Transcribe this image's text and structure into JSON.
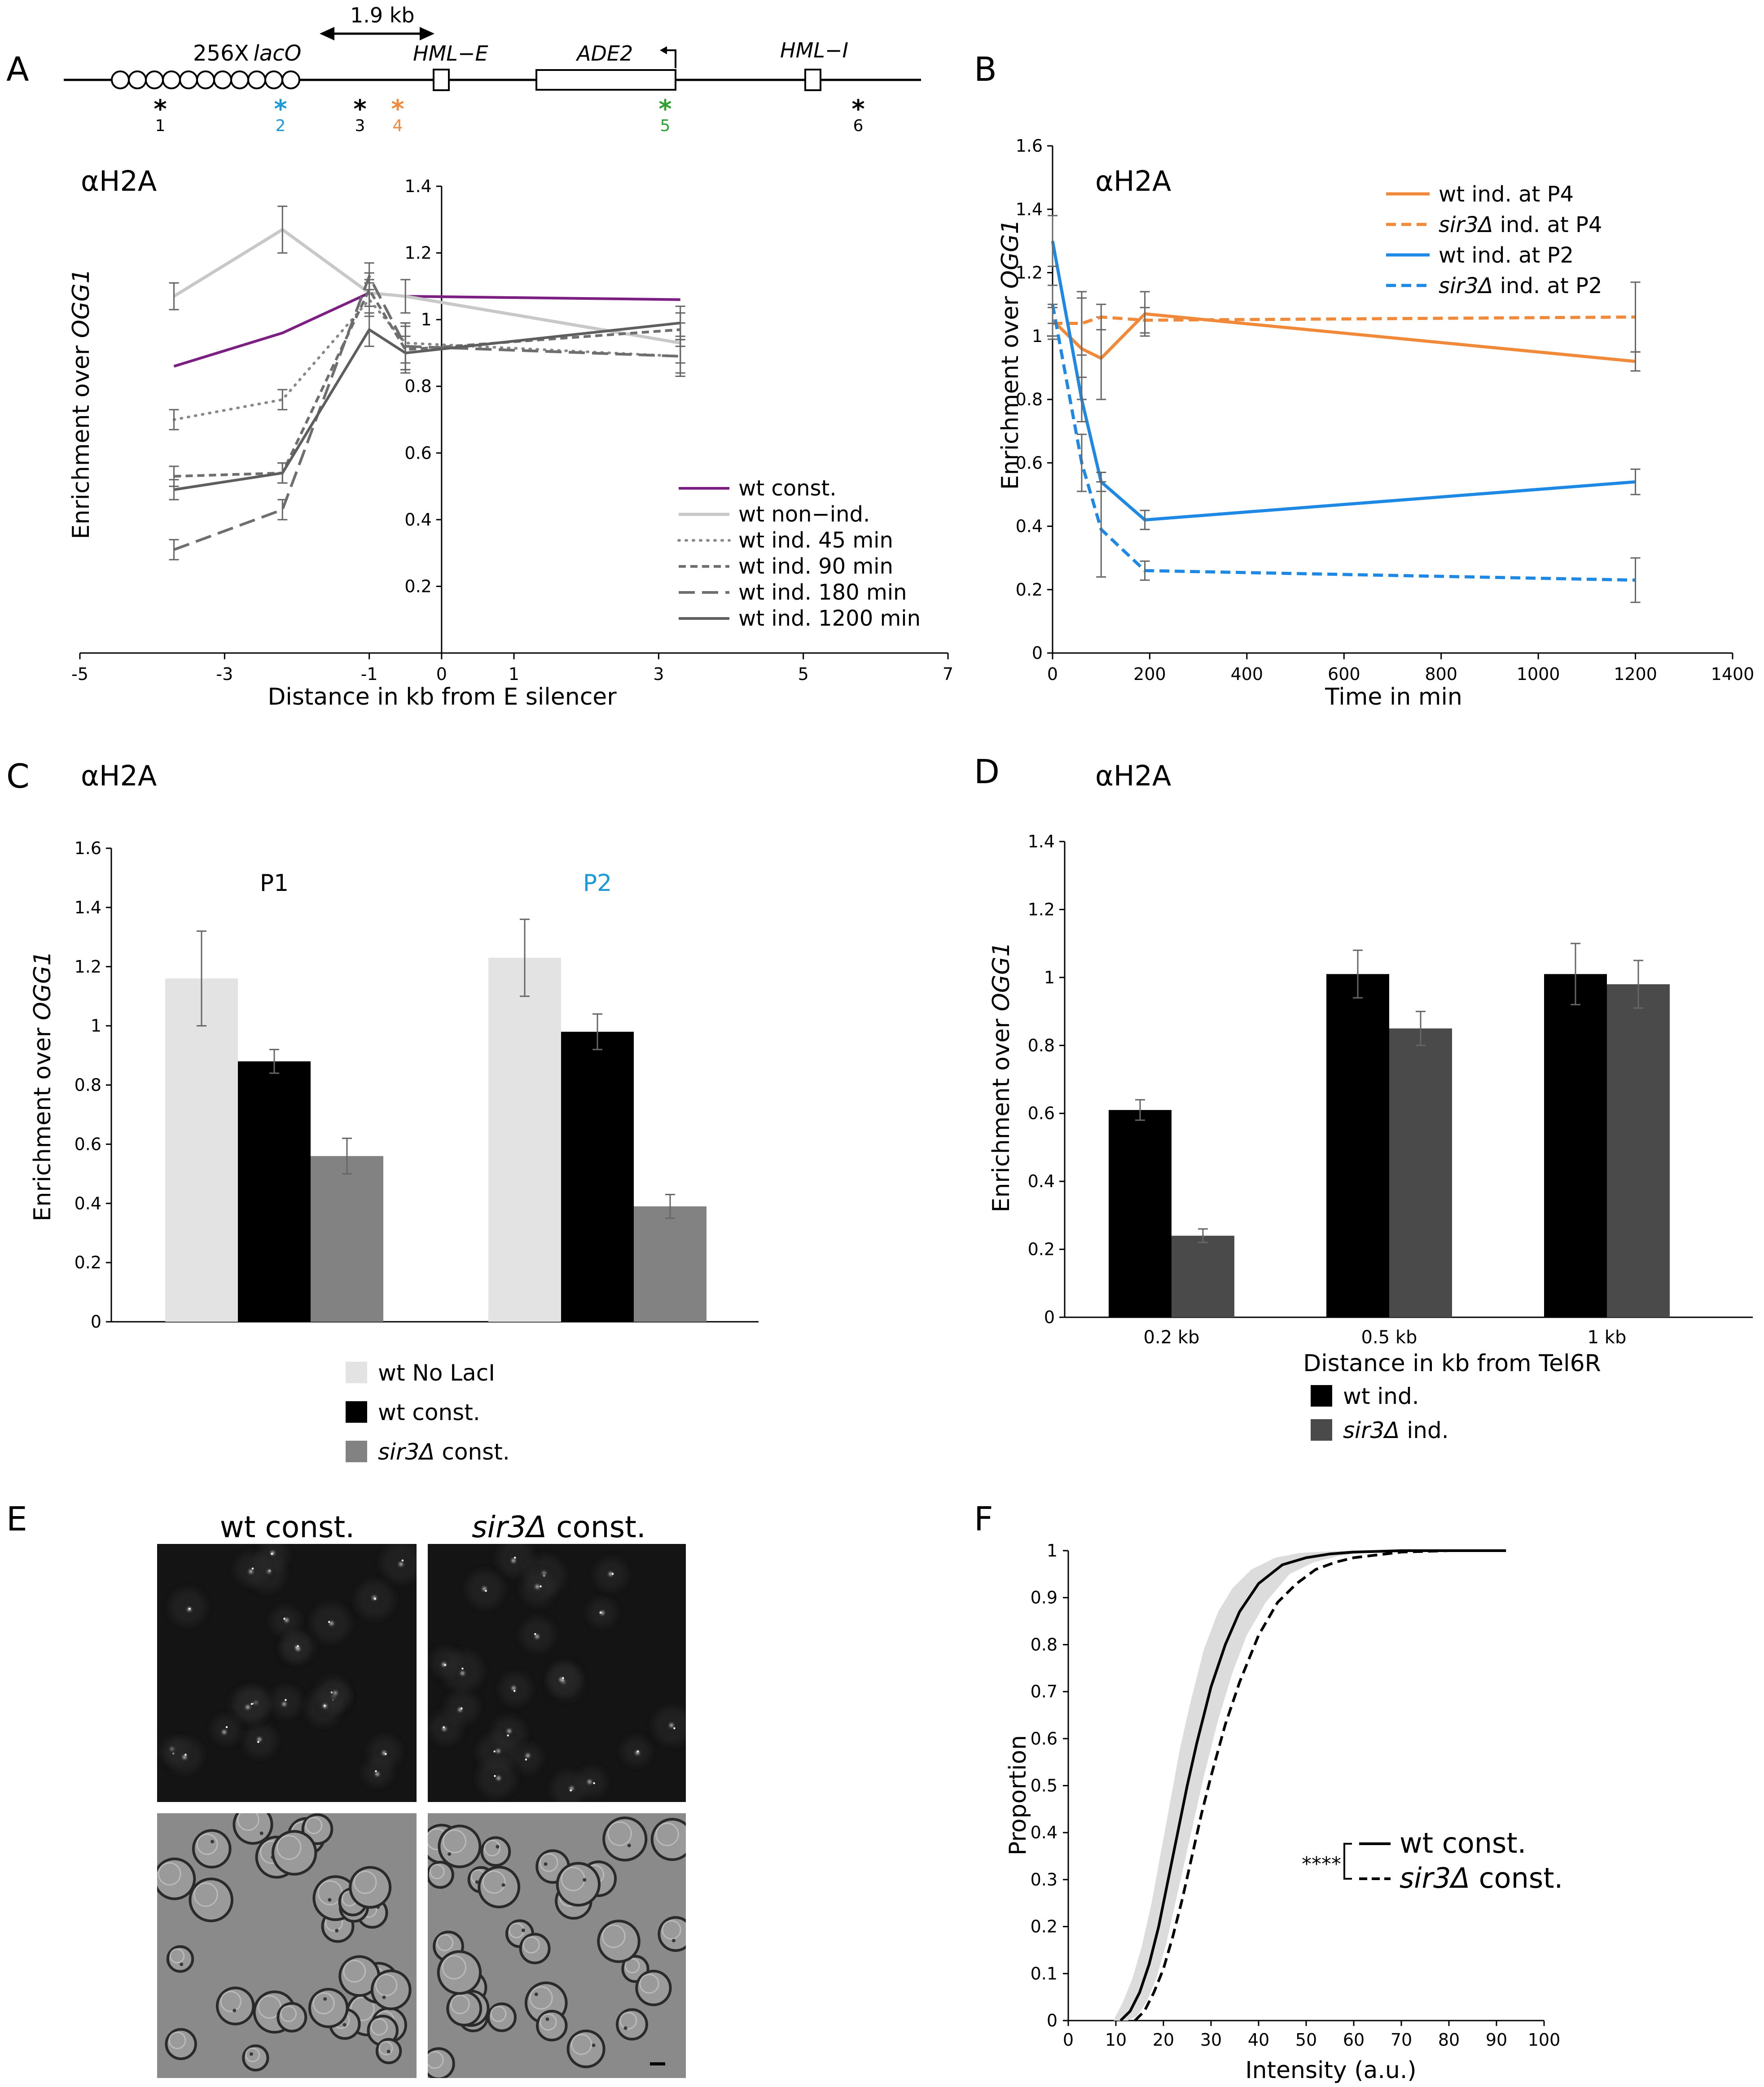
{
  "panel_letters": [
    "A",
    "B",
    "C",
    "D",
    "E",
    "F"
  ],
  "schematic": {
    "lacO_label": "256X",
    "lacO_italic": "lacO",
    "distance_label": "1.9 kb",
    "hmle_label": "HML−E",
    "ade2_label": "ADE2",
    "hmli_label": "HML−I",
    "primers": [
      {
        "num": "1",
        "color": "#000000"
      },
      {
        "num": "2",
        "color": "#1a9ad8"
      },
      {
        "num": "3",
        "color": "#000000"
      },
      {
        "num": "4",
        "color": "#f08a3a"
      },
      {
        "num": "5",
        "color": "#2ca02c"
      },
      {
        "num": "6",
        "color": "#000000"
      }
    ]
  },
  "chart_data": [
    {
      "id": "A",
      "type": "line",
      "title": "αH2A",
      "xlabel": "Distance in kb from E silencer",
      "ylabel_prefix": "Enrichment over ",
      "ylabel_italic": "OGG1",
      "xlim": [
        -5,
        7
      ],
      "ylim": [
        0,
        1.4
      ],
      "xticks": [
        -5,
        -3,
        -1,
        1,
        3,
        5,
        7
      ],
      "xticks_minor": [
        0
      ],
      "yticks": [
        0.2,
        0.4,
        0.6,
        0.8,
        1.0,
        1.2,
        1.4
      ],
      "ytick_labels": [
        "0.2",
        "0.4",
        "0.6",
        "0.8",
        "1",
        "1.2",
        "1.4"
      ],
      "xtick_labels": [
        "-5",
        "-3",
        "-1",
        "0",
        "1",
        "3",
        "5",
        "7"
      ],
      "x": [
        -3.7,
        -2.2,
        -1.0,
        -0.5,
        3.3
      ],
      "series": [
        {
          "name": "wt const.",
          "color": "#7b1f82",
          "dash": "solid",
          "width": 6,
          "values": [
            0.86,
            0.96,
            1.08,
            1.07,
            1.06
          ],
          "err": [
            0,
            0.0,
            0,
            0,
            0.0
          ]
        },
        {
          "name": "wt non−ind.",
          "color": "#c8c8c8",
          "dash": "solid",
          "width": 7,
          "values": [
            1.07,
            1.27,
            1.08,
            1.07,
            0.93
          ],
          "err": [
            0.04,
            0.07,
            0.04,
            0.05,
            0.06
          ]
        },
        {
          "name": "wt ind. 45 min",
          "color": "#888888",
          "dash": "dot",
          "width": 6,
          "values": [
            0.7,
            0.76,
            1.06,
            0.93,
            0.89
          ],
          "err": [
            0.03,
            0.03,
            0.05,
            0.06,
            0.05
          ]
        },
        {
          "name": "wt ind. 90 min",
          "color": "#6e6e6e",
          "dash": "shortdash",
          "width": 6,
          "values": [
            0.53,
            0.54,
            1.09,
            0.91,
            0.97
          ],
          "err": [
            0.03,
            0.03,
            0.05,
            0.07,
            0.05
          ]
        },
        {
          "name": "wt ind. 180 min",
          "color": "#6e6e6e",
          "dash": "longdash",
          "width": 6,
          "values": [
            0.31,
            0.43,
            1.13,
            0.92,
            0.89
          ],
          "err": [
            0.03,
            0.03,
            0.04,
            0.07,
            0.06
          ]
        },
        {
          "name": "wt ind. 1200 min",
          "color": "#5e5e5e",
          "dash": "solid",
          "width": 6,
          "values": [
            0.49,
            0.54,
            0.97,
            0.9,
            0.99
          ],
          "err": [
            0.03,
            0.03,
            0.05,
            0.05,
            0.05
          ]
        }
      ]
    },
    {
      "id": "B",
      "type": "line",
      "title": "αH2A",
      "xlabel": "Time in min",
      "ylabel_prefix": "Enrichment over ",
      "ylabel_italic": "OGG1",
      "xlim": [
        0,
        1400
      ],
      "ylim": [
        0,
        1.6
      ],
      "xticks": [
        0,
        200,
        400,
        600,
        800,
        1000,
        1200,
        1400
      ],
      "yticks": [
        0,
        0.2,
        0.4,
        0.6,
        0.8,
        1.0,
        1.2,
        1.4,
        1.6
      ],
      "ytick_labels": [
        "0",
        "0.2",
        "0.4",
        "0.6",
        "0.8",
        "1",
        "1.2",
        "1.4",
        "1.6"
      ],
      "x": [
        0,
        60,
        100,
        190,
        1200
      ],
      "series": [
        {
          "name_prefix": "wt",
          "name_suffix": " ind. at P4",
          "italic": false,
          "color": "#f08a3a",
          "dash": "solid",
          "values": [
            1.05,
            0.96,
            0.93,
            1.07,
            0.92
          ],
          "err": [
            0.05,
            0.16,
            0.13,
            0.07,
            0.03
          ]
        },
        {
          "name_prefix": "sir3Δ",
          "name_suffix": " ind. at P4",
          "italic": true,
          "color": "#f08a3a",
          "dash": "dash",
          "values": [
            1.04,
            1.04,
            1.06,
            1.05,
            1.06
          ],
          "err": [
            0.05,
            0.1,
            0.04,
            0.04,
            0.11
          ]
        },
        {
          "name_prefix": "wt",
          "name_suffix": " ind. at P2",
          "italic": false,
          "color": "#1e88e5",
          "dash": "solid",
          "values": [
            1.3,
            0.8,
            0.54,
            0.42,
            0.54
          ],
          "err": [
            0.08,
            0.07,
            0.03,
            0.03,
            0.04
          ]
        },
        {
          "name_prefix": "sir3Δ",
          "name_suffix": " ind. at P2",
          "italic": true,
          "color": "#1e88e5",
          "dash": "dash",
          "values": [
            1.1,
            0.6,
            0.39,
            0.26,
            0.23
          ],
          "err": [
            0.06,
            0.09,
            0.15,
            0.03,
            0.07
          ]
        }
      ]
    },
    {
      "id": "C",
      "type": "bar",
      "title": "αH2A",
      "ylabel_prefix": "Enrichment over ",
      "ylabel_italic": "OGG1",
      "ylim": [
        0,
        1.6
      ],
      "yticks": [
        0,
        0.2,
        0.4,
        0.6,
        0.8,
        1.0,
        1.2,
        1.4,
        1.6
      ],
      "ytick_labels": [
        "0",
        "0.2",
        "0.4",
        "0.6",
        "0.8",
        "1",
        "1.2",
        "1.4",
        "1.6"
      ],
      "categories": [
        "P1",
        "P2"
      ],
      "category_colors": [
        "#000000",
        "#1a9ad8"
      ],
      "series": [
        {
          "name_prefix": "wt",
          "name_suffix": " No LacI",
          "italic": false,
          "color": "#e3e3e3",
          "values": [
            1.16,
            1.23
          ],
          "err": [
            0.16,
            0.13
          ]
        },
        {
          "name_prefix": "wt",
          "name_suffix": " const.",
          "italic": false,
          "color": "#000000",
          "values": [
            0.88,
            0.98
          ],
          "err": [
            0.04,
            0.06
          ]
        },
        {
          "name_prefix": "sir3Δ",
          "name_suffix": " const.",
          "italic": true,
          "color": "#828282",
          "values": [
            0.56,
            0.39
          ],
          "err": [
            0.06,
            0.04
          ]
        }
      ]
    },
    {
      "id": "D",
      "type": "bar",
      "title": "αH2A",
      "xlabel": "Distance in kb from Tel6R",
      "ylabel_prefix": "Enrichment over ",
      "ylabel_italic": "OGG1",
      "ylim": [
        0,
        1.4
      ],
      "yticks": [
        0,
        0.2,
        0.4,
        0.6,
        0.8,
        1.0,
        1.2,
        1.4
      ],
      "ytick_labels": [
        "0",
        "0.2",
        "0.4",
        "0.6",
        "0.8",
        "1",
        "1.2",
        "1.4"
      ],
      "categories": [
        "0.2 kb",
        "0.5 kb",
        "1 kb"
      ],
      "series": [
        {
          "name_prefix": "wt",
          "name_suffix": " ind.",
          "italic": false,
          "color": "#000000",
          "values": [
            0.61,
            1.01,
            1.01
          ],
          "err": [
            0.03,
            0.07,
            0.09
          ]
        },
        {
          "name_prefix": "sir3Δ",
          "name_suffix": " ind.",
          "italic": true,
          "color": "#4a4a4a",
          "values": [
            0.24,
            0.85,
            0.98
          ],
          "err": [
            0.02,
            0.05,
            0.07
          ]
        }
      ]
    },
    {
      "id": "F",
      "type": "line",
      "xlabel": "Intensity (a.u.)",
      "ylabel": "Proportion",
      "xlim": [
        0,
        100
      ],
      "ylim": [
        0,
        1
      ],
      "xticks": [
        0,
        10,
        20,
        30,
        40,
        50,
        60,
        70,
        80,
        90,
        100
      ],
      "yticks": [
        0,
        0.1,
        0.2,
        0.3,
        0.4,
        0.5,
        0.6,
        0.7,
        0.8,
        0.9,
        1
      ],
      "significance": "****",
      "series": [
        {
          "name_prefix": "wt",
          "name_suffix": " const.",
          "italic": false,
          "dash": "solid",
          "color": "#000000",
          "x": [
            11,
            13,
            15,
            17,
            19,
            21,
            23,
            25,
            27,
            30,
            33,
            36,
            40,
            45,
            50,
            55,
            60,
            70,
            80,
            92
          ],
          "values": [
            0,
            0.02,
            0.06,
            0.12,
            0.2,
            0.3,
            0.4,
            0.5,
            0.59,
            0.71,
            0.8,
            0.87,
            0.93,
            0.97,
            0.985,
            0.993,
            0.997,
            1.0,
            1.0,
            1.0
          ],
          "ci_low": [
            0,
            0.01,
            0.04,
            0.09,
            0.16,
            0.25,
            0.34,
            0.43,
            0.52,
            0.64,
            0.74,
            0.82,
            0.89,
            0.95,
            0.975,
            0.988,
            0.995,
            1.0,
            1.0,
            1.0
          ],
          "ci_high": [
            0,
            0.04,
            0.09,
            0.16,
            0.25,
            0.36,
            0.47,
            0.58,
            0.67,
            0.79,
            0.87,
            0.92,
            0.96,
            0.985,
            0.995,
            0.998,
            1.0,
            1.0,
            1.0,
            1.0
          ]
        },
        {
          "name_prefix": "sir3Δ",
          "name_suffix": " const.",
          "italic": true,
          "dash": "dash",
          "color": "#000000",
          "x": [
            14,
            16,
            18,
            20,
            22,
            24,
            26,
            28,
            30,
            33,
            36,
            40,
            44,
            48,
            52,
            56,
            60,
            70,
            80,
            92
          ],
          "values": [
            0,
            0.02,
            0.06,
            0.11,
            0.18,
            0.26,
            0.35,
            0.44,
            0.52,
            0.63,
            0.72,
            0.82,
            0.89,
            0.93,
            0.96,
            0.975,
            0.985,
            0.997,
            1.0,
            1.0
          ]
        }
      ]
    }
  ],
  "panel_E": {
    "left_title": "wt const.",
    "right_title_italic": "sir3Δ",
    "right_title_suffix": " const."
  }
}
